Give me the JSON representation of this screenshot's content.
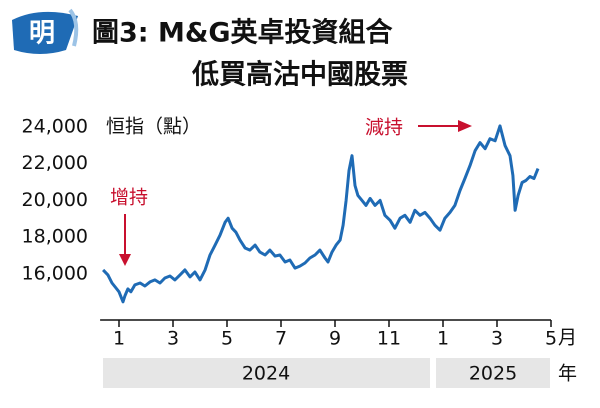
{
  "chart_data": {
    "type": "line",
    "logo": "明",
    "title": [
      "圖3: M&G英卓投資組合",
      "低買高沽中國股票"
    ],
    "y_label": "恒指（點）",
    "x_unit": "月",
    "group_unit": "年",
    "x_groups": [
      "2024",
      "2025"
    ],
    "annotations": [
      "增持",
      "減持"
    ],
    "color": "#1f6bb5",
    "xlim": [
      -0.7,
      16.0
    ],
    "ylim": [
      13500,
      25700
    ],
    "xticks": [
      {
        "value": 0,
        "label": "1"
      },
      {
        "value": 2,
        "label": "3"
      },
      {
        "value": 4,
        "label": "5"
      },
      {
        "value": 6,
        "label": "7"
      },
      {
        "value": 8,
        "label": "9"
      },
      {
        "value": 10,
        "label": "11"
      },
      {
        "value": 12,
        "label": "1"
      },
      {
        "value": 14,
        "label": "3"
      },
      {
        "value": 16,
        "label": "5"
      }
    ],
    "yticks": [
      {
        "value": 16000,
        "label": "16,000"
      },
      {
        "value": 18000,
        "label": "18,000"
      },
      {
        "value": 20000,
        "label": "20,000"
      },
      {
        "value": 22000,
        "label": "22,000"
      },
      {
        "value": 24000,
        "label": "24,000"
      }
    ],
    "x": [
      -0.59,
      -0.41,
      -0.26,
      -0.11,
      0,
      0.15,
      0.22,
      0.33,
      0.44,
      0.59,
      0.78,
      0.96,
      1.15,
      1.33,
      1.52,
      1.7,
      1.89,
      2.07,
      2.26,
      2.44,
      2.63,
      2.81,
      3.0,
      3.19,
      3.37,
      3.56,
      3.74,
      3.93,
      4.04,
      4.19,
      4.33,
      4.48,
      4.67,
      4.85,
      5.04,
      5.22,
      5.41,
      5.59,
      5.78,
      5.96,
      6.15,
      6.33,
      6.52,
      6.7,
      6.89,
      7.07,
      7.26,
      7.44,
      7.63,
      7.74,
      7.89,
      8.04,
      8.19,
      8.3,
      8.41,
      8.52,
      8.63,
      8.74,
      8.85,
      9.0,
      9.15,
      9.3,
      9.48,
      9.67,
      9.85,
      10.04,
      10.22,
      10.41,
      10.59,
      10.78,
      10.96,
      11.15,
      11.33,
      11.52,
      11.7,
      11.89,
      12.07,
      12.26,
      12.44,
      12.63,
      12.81,
      13.0,
      13.19,
      13.37,
      13.56,
      13.74,
      13.93,
      14.11,
      14.3,
      14.48,
      14.59,
      14.67,
      14.78,
      14.93,
      15.07,
      15.22,
      15.37,
      15.52
    ],
    "values": [
      16220,
      15950,
      15510,
      15240,
      15030,
      14490,
      14810,
      15190,
      15030,
      15410,
      15510,
      15350,
      15570,
      15680,
      15510,
      15780,
      15890,
      15680,
      15950,
      16220,
      15840,
      16110,
      15680,
      16220,
      17030,
      17570,
      18110,
      18810,
      19030,
      18490,
      18270,
      17840,
      17410,
      17300,
      17570,
      17190,
      17030,
      17300,
      16970,
      17030,
      16650,
      16760,
      16320,
      16430,
      16600,
      16870,
      17030,
      17300,
      16870,
      16650,
      17190,
      17570,
      17840,
      18650,
      20000,
      21620,
      22430,
      20810,
      20270,
      20000,
      19730,
      20110,
      19730,
      20000,
      19190,
      18920,
      18490,
      19030,
      19190,
      18810,
      19460,
      19190,
      19350,
      19030,
      18650,
      18380,
      19030,
      19350,
      19730,
      20540,
      21190,
      21890,
      22700,
      23140,
      22810,
      23350,
      23240,
      24050,
      22970,
      22430,
      21350,
      19460,
      20270,
      20970,
      21080,
      21300,
      21190,
      21730
    ]
  }
}
